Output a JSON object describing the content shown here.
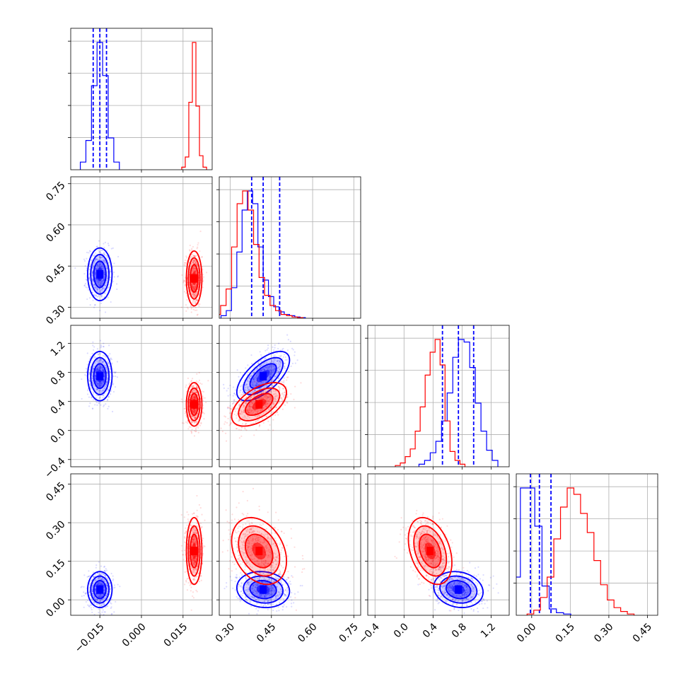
{
  "colors": {
    "series_a": "#0000ff",
    "series_b": "#ff0000"
  },
  "chart_data": {
    "type": "corner",
    "title": "",
    "legend": "none",
    "grid": true,
    "parameters": [
      {
        "label": "",
        "range": [
          -0.0255,
          0.0255
        ],
        "ticks": [
          -0.015,
          0.0,
          0.015
        ],
        "tick_labels": [
          "−0.015",
          "0.000",
          "0.015"
        ]
      },
      {
        "label": "",
        "range": [
          0.26,
          0.775
        ],
        "ticks": [
          0.3,
          0.45,
          0.6,
          0.75
        ],
        "tick_labels": [
          "0.30",
          "0.45",
          "0.60",
          "0.75"
        ]
      },
      {
        "label": "",
        "range": [
          -0.5,
          1.45
        ],
        "ticks": [
          -0.4,
          0.0,
          0.4,
          0.8,
          1.2
        ],
        "tick_labels": [
          "−0.4",
          "0.0",
          "0.4",
          "0.8",
          "1.2"
        ]
      },
      {
        "label": "",
        "range": [
          -0.06,
          0.49
        ],
        "ticks": [
          0.0,
          0.15,
          0.3,
          0.45
        ],
        "tick_labels": [
          "0.00",
          "0.15",
          "0.30",
          "0.45"
        ]
      }
    ],
    "series": [
      {
        "name": "",
        "color": "#0000ff",
        "mean": [
          -0.015,
          0.42,
          0.75,
          0.04
        ],
        "std": [
          0.0022,
          0.048,
          0.17,
          0.035
        ],
        "correlation": [
          [
            1,
            0,
            0,
            0
          ],
          [
            0,
            1,
            0.65,
            -0.1
          ],
          [
            0,
            0.65,
            1,
            -0.15
          ],
          [
            0,
            -0.1,
            -0.15,
            1
          ]
        ],
        "quantile_lines": [
          [
            -0.0174,
            -0.015,
            -0.0126
          ],
          [
            0.378,
            0.42,
            0.48
          ],
          [
            0.53,
            0.75,
            0.96
          ],
          [
            -0.005,
            0.03,
            0.075
          ]
        ],
        "histograms": [
          [
            0.06,
            0.23,
            0.66,
            1.0,
            0.74,
            0.25,
            0.06
          ],
          [
            0.02,
            0.06,
            0.24,
            0.52,
            0.85,
            1.0,
            0.9,
            0.56,
            0.3,
            0.17,
            0.09,
            0.05,
            0.03,
            0.02,
            0.01,
            0.005
          ],
          [
            0.02,
            0.05,
            0.11,
            0.2,
            0.36,
            0.58,
            0.86,
            1.0,
            0.98,
            0.78,
            0.5,
            0.28,
            0.13,
            0.05
          ],
          [
            0.3,
            1.0,
            1.0,
            0.7,
            0.23,
            0.05,
            0.02,
            0.01
          ]
        ]
      },
      {
        "name": "",
        "color": "#ff0000",
        "mean": [
          0.019,
          0.405,
          0.36,
          0.19
        ],
        "std": [
          0.0014,
          0.05,
          0.15,
          0.065
        ],
        "correlation": [
          [
            1,
            0,
            0,
            0
          ],
          [
            0,
            1,
            0.55,
            -0.3
          ],
          [
            0,
            0.55,
            1,
            -0.35
          ],
          [
            0,
            -0.3,
            -0.35,
            1
          ]
        ],
        "quantile_lines": [],
        "histograms": [
          [
            0.02,
            0.1,
            0.53,
            1.0,
            0.5,
            0.11,
            0.02
          ],
          [
            0.03,
            0.1,
            0.23,
            0.56,
            0.9,
            1.0,
            0.85,
            0.58,
            0.32,
            0.18,
            0.1,
            0.06,
            0.03,
            0.02,
            0.01,
            0.005
          ],
          [
            0.01,
            0.03,
            0.08,
            0.14,
            0.28,
            0.47,
            0.72,
            0.9,
            1.0,
            0.8,
            0.36,
            0.12,
            0.05,
            0.02
          ],
          [
            0.01,
            0.04,
            0.14,
            0.3,
            0.6,
            0.85,
            1.0,
            0.95,
            0.8,
            0.65,
            0.43,
            0.24,
            0.12,
            0.06,
            0.03,
            0.01
          ]
        ]
      }
    ]
  }
}
